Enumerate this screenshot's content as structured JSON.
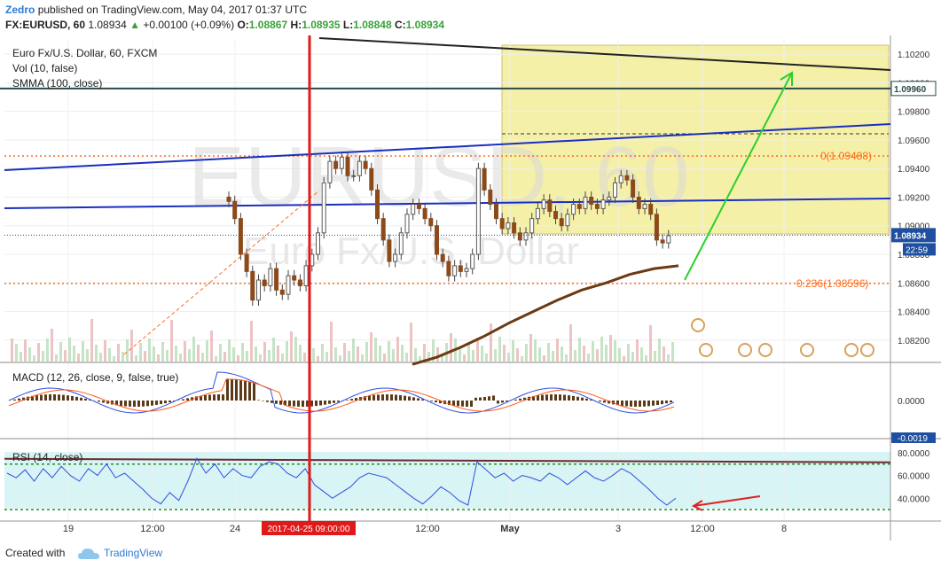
{
  "header": {
    "user": "Zedro",
    "published": "published on TradingView.com, May 04, 2017 01:37 UTC",
    "symbol": "FX:EURUSD, 60",
    "price": "1.08934",
    "change_arrow": "▲",
    "change": "+0.00100 (+0.09%)",
    "o_label": "O:",
    "o": "1.08867",
    "h_label": "H:",
    "h": "1.08935",
    "l_label": "L:",
    "l": "1.08848",
    "c_label": "C:",
    "c": "1.08934"
  },
  "legend": {
    "series": "Euro Fx/U.S. Dollar, 60, FXCM",
    "vol": "Vol (10, false)",
    "smma": "SMMA (100, close)",
    "macd": "MACD (12, 26, close, 9, false, true)",
    "rsi": "RSI (14, close)"
  },
  "watermark": {
    "line1": "EURUSD, 60",
    "line2": "Euro Fx/U.S. Dollar"
  },
  "footer": {
    "made": "Created with",
    "brand": "TradingView"
  },
  "colors": {
    "up": "#3aa13a",
    "candle_up": "#5a5a5a",
    "candle_down": "#8c4a1a",
    "smma": "#6b3a12",
    "trend_blue": "#1a2fbf",
    "fib": "#ff6b1a",
    "red_line": "#e01a1a",
    "green_arrow": "#2ad12a",
    "zone": "#f5f0a8",
    "rsi_line": "#2f4fe0",
    "macd_line": "#2f4fe0",
    "signal_line": "#ff5a1a",
    "rsi_bg": "#d8f4f4",
    "price_tag": "#1f4fa0"
  },
  "chart_data": {
    "type": "line",
    "main_panel": {
      "y_ticks": [
        "1.10200",
        "1.10000",
        "1.09800",
        "1.09600",
        "1.09400",
        "1.09200",
        "1.09000",
        "1.08800",
        "1.08600",
        "1.08400",
        "1.08200"
      ],
      "y_range": [
        1.0805,
        1.103
      ],
      "x_ticks": [
        "19",
        "12:00",
        "24",
        "12:00",
        "May",
        "3",
        "12:00",
        "8"
      ],
      "price_last": "1.08934",
      "countdown": "22:59",
      "level_label": "1.09960",
      "level_value": 1.0996,
      "fib_levels": [
        {
          "label": "0(1.09488)",
          "value": 1.09488
        },
        {
          "label": "0.236(1.08596)",
          "value": 1.08596
        }
      ],
      "crosshair_date": "2017-04-25 09:00:00",
      "close_series": [
        1.0917,
        1.0905,
        1.088,
        1.0868,
        1.0848,
        1.0862,
        1.0858,
        1.087,
        1.0855,
        1.0852,
        1.0865,
        1.0862,
        1.0858,
        1.0872,
        1.088,
        1.0895,
        1.093,
        1.0945,
        1.094,
        1.0948,
        1.0935,
        1.0935,
        1.0945,
        1.094,
        1.0925,
        1.0905,
        1.089,
        1.0875,
        1.088,
        1.0895,
        1.0908,
        1.0915,
        1.0912,
        1.0905,
        1.09,
        1.088,
        1.0875,
        1.0865,
        1.0872,
        1.0868,
        1.087,
        1.088,
        1.094,
        1.0925,
        1.0915,
        1.0905,
        1.0898,
        1.0902,
        1.0895,
        1.089,
        1.0895,
        1.0905,
        1.0912,
        1.0918,
        1.091,
        1.0905,
        1.09,
        1.0908,
        1.0915,
        1.0912,
        1.092,
        1.0915,
        1.0912,
        1.0918,
        1.092,
        1.093,
        1.0935,
        1.0932,
        1.092,
        1.0912,
        1.0915,
        1.0908,
        1.089,
        1.0888,
        1.0893
      ],
      "smma_series": [
        1.0803,
        1.0808,
        1.0815,
        1.0823,
        1.0832,
        1.084,
        1.0848,
        1.0855,
        1.086,
        1.0866,
        1.087,
        1.0872
      ]
    },
    "macd_panel": {
      "y_ticks": [
        "0.0000"
      ],
      "label_bottom": "-0.0019"
    },
    "rsi_panel": {
      "y_ticks": [
        "80.0000",
        "60.0000",
        "40.0000"
      ],
      "bands": [
        70,
        30
      ],
      "series": [
        62,
        58,
        65,
        55,
        66,
        58,
        68,
        60,
        55,
        66,
        60,
        70,
        58,
        62,
        55,
        48,
        40,
        35,
        45,
        38,
        55,
        75,
        62,
        70,
        58,
        66,
        60,
        58,
        68,
        72,
        70,
        62,
        58,
        66,
        52,
        46,
        40,
        45,
        50,
        58,
        62,
        60,
        58,
        52,
        46,
        40,
        35,
        42,
        50,
        45,
        38,
        34,
        72,
        65,
        58,
        62,
        55,
        60,
        58,
        55,
        62,
        58,
        52,
        58,
        64,
        58,
        55,
        60,
        66,
        62,
        55,
        48,
        40,
        34,
        40
      ]
    }
  }
}
